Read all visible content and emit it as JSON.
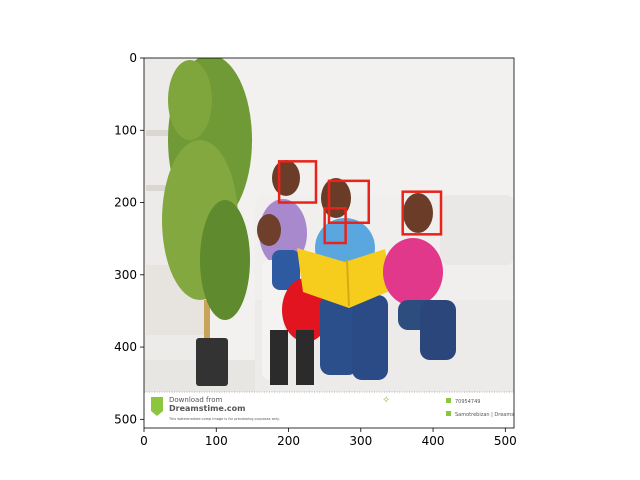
{
  "axes": {
    "x_ticks": [
      0,
      100,
      200,
      300,
      400,
      500
    ],
    "y_ticks": [
      0,
      100,
      200,
      300,
      400,
      500
    ],
    "xlim": [
      0,
      512
    ],
    "ylim": [
      512,
      0
    ]
  },
  "image": {
    "footer_text_1": "Download from",
    "footer_text_2": "Dreamstime.com",
    "footer_small": "This watermarked comp image is for previewing purposes only.",
    "footer_right_1": "70954749",
    "footer_right_2": "Samotrebizan | Dreamstime.com"
  },
  "detections": [
    {
      "label": "face",
      "x": 187,
      "y": 143,
      "w": 51,
      "h": 57
    },
    {
      "label": "face",
      "x": 256,
      "y": 170,
      "w": 55,
      "h": 58
    },
    {
      "label": "face",
      "x": 358,
      "y": 185,
      "w": 53,
      "h": 59
    },
    {
      "label": "face",
      "x": 250,
      "y": 208,
      "w": 29,
      "h": 48
    }
  ],
  "colors": {
    "box": "#e8231a",
    "wall": "#f3f1ef",
    "sofa": "#f0efee"
  }
}
